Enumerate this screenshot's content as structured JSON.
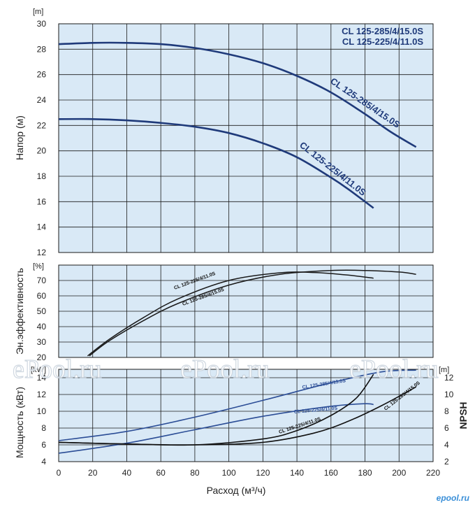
{
  "chart_data": [
    {
      "type": "line",
      "name_key": "head",
      "ylabel": "Напор (м)",
      "yunit": "[m]",
      "xlim": [
        0,
        220
      ],
      "ylim": [
        12,
        30
      ],
      "yticks": [
        12,
        14,
        16,
        18,
        20,
        22,
        24,
        26,
        28,
        30
      ],
      "legend": [
        "CL 125-285/4/15.0S",
        "CL 125-225/4/11.0S"
      ],
      "series": [
        {
          "name": "CL 125-285/4/15.0S",
          "x": [
            0,
            20,
            40,
            60,
            80,
            100,
            120,
            140,
            160,
            180,
            195,
            210
          ],
          "y": [
            28.4,
            28.5,
            28.5,
            28.4,
            28.1,
            27.6,
            26.9,
            25.9,
            24.6,
            22.9,
            21.5,
            20.3
          ]
        },
        {
          "name": "CL 125-225/4/11.0S",
          "x": [
            0,
            20,
            40,
            60,
            80,
            100,
            120,
            140,
            160,
            170,
            185
          ],
          "y": [
            22.5,
            22.5,
            22.4,
            22.2,
            21.9,
            21.4,
            20.6,
            19.5,
            17.9,
            17.0,
            15.5
          ]
        }
      ]
    },
    {
      "type": "line",
      "name_key": "efficiency",
      "ylabel": "Эн.эффективность",
      "yunit": "[%]",
      "xlim": [
        0,
        220
      ],
      "ylim": [
        20,
        80
      ],
      "yticks": [
        20,
        30,
        40,
        50,
        60,
        70
      ],
      "series": [
        {
          "name": "CL 125-285/4/15.0S",
          "x": [
            18,
            30,
            50,
            70,
            100,
            130,
            160,
            180,
            200,
            210
          ],
          "y": [
            21,
            31,
            44,
            55,
            67,
            74,
            76.5,
            76.5,
            75.5,
            74
          ]
        },
        {
          "name": "CL 125-225/4/11.0S",
          "x": [
            17,
            30,
            50,
            70,
            100,
            130,
            150,
            170,
            185
          ],
          "y": [
            21,
            32,
            46,
            58,
            70,
            75,
            75.2,
            73.5,
            71.5
          ]
        }
      ]
    },
    {
      "type": "line",
      "name_key": "power_npsh",
      "ylabel": "Мощность (кВт)",
      "yunit": "[kW]",
      "y2label": "NPSH",
      "y2unit": "[m]",
      "xlim": [
        0,
        220
      ],
      "xlabel": "Расход (м³/ч)",
      "xticks": [
        0,
        20,
        40,
        60,
        80,
        100,
        120,
        140,
        160,
        180,
        200,
        220
      ],
      "ylim": [
        4,
        15
      ],
      "yticks": [
        4,
        6,
        8,
        10,
        12,
        14
      ],
      "y2lim": [
        2,
        13
      ],
      "y2ticks": [
        2,
        4,
        6,
        8,
        10,
        12
      ],
      "series": [
        {
          "name": "CL 125-285/4/15.0S",
          "kind": "power",
          "x": [
            0,
            40,
            80,
            120,
            160,
            190,
            210
          ],
          "y": [
            6.5,
            7.6,
            9.3,
            11.3,
            13.4,
            14.7,
            14.9
          ]
        },
        {
          "name": "CL 125-225/4/11.0S",
          "kind": "power",
          "x": [
            0,
            40,
            80,
            120,
            160,
            180,
            185
          ],
          "y": [
            5.0,
            6.2,
            7.8,
            9.4,
            10.6,
            10.9,
            10.8
          ]
        },
        {
          "name": "CL 125-285/4/15.0S",
          "kind": "npsh",
          "x": [
            0,
            40,
            80,
            120,
            150,
            170,
            190,
            210
          ],
          "y2": [
            4.3,
            4.1,
            4.0,
            4.3,
            5.4,
            6.8,
            8.7,
            10.9
          ]
        },
        {
          "name": "CL 125-225/4/11.0S",
          "kind": "npsh",
          "x": [
            0,
            40,
            80,
            120,
            140,
            160,
            175,
            185
          ],
          "y2": [
            4.3,
            4.1,
            4.0,
            4.7,
            5.7,
            7.5,
            9.6,
            12.4
          ]
        }
      ]
    }
  ],
  "colors": {
    "plot_bg": "#d9e9f6",
    "grid": "#1a1a1a",
    "head_curve": "#1f3a7a",
    "eff_curve": "#1a1a1a",
    "power_curve": "#2b4d96",
    "npsh_curve": "#111111"
  },
  "watermark": "ePool.ru",
  "brand": "epool.ru"
}
